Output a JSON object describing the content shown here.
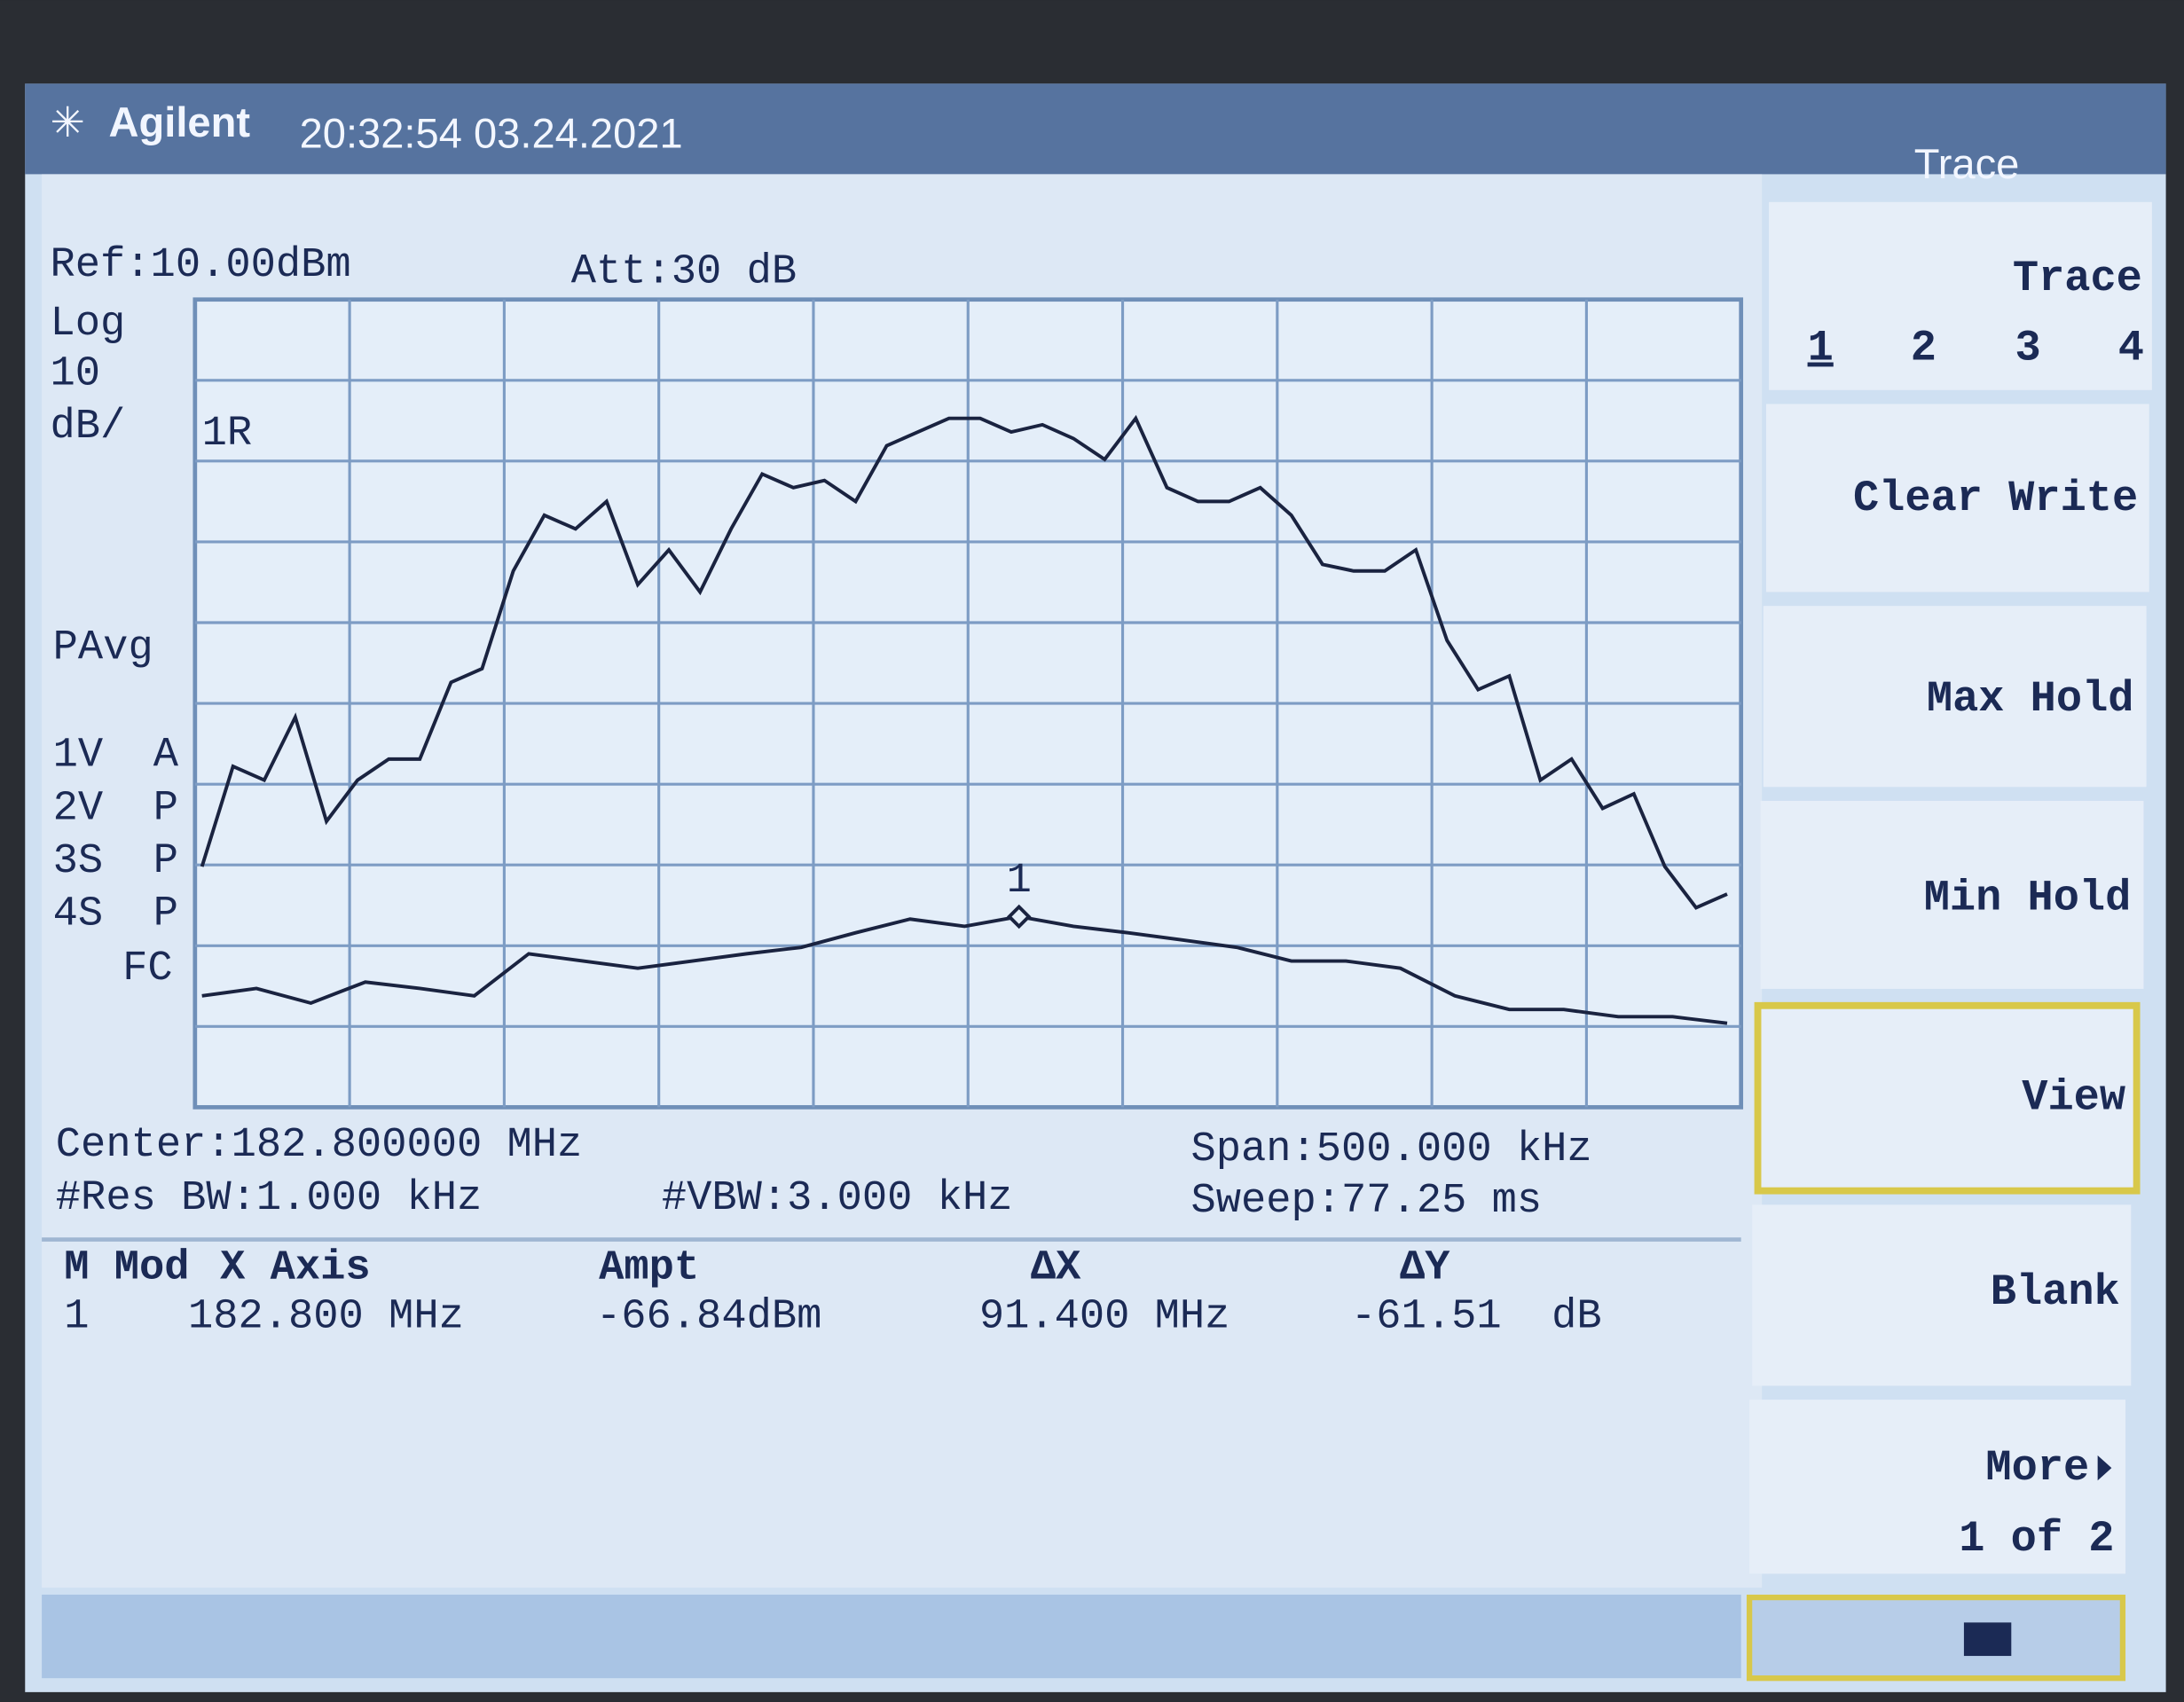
{
  "header": {
    "brand": "Agilent",
    "datetime": "20:32:54 03.24.2021"
  },
  "settings": {
    "ref": "Ref:10.00dBm",
    "att": "Att:30 dB",
    "scale": [
      "Log",
      "10",
      "dB/"
    ],
    "ref_marker": "1R",
    "detector": "PAvg",
    "trace_states": [
      "1V  A",
      "2V  P",
      "3S  P",
      "4S  P"
    ],
    "fc": "FC"
  },
  "footer": {
    "center": "Center:182.800000 MHz",
    "span": "Span:500.000 kHz",
    "rbw": "#Res BW:1.000 kHz",
    "vbw": "#VBW:3.000 kHz",
    "sweep": "Sweep:77.25 ms"
  },
  "marker_table": {
    "headers": [
      "M Mod",
      "X Axis",
      "Ampt",
      "ΔX",
      "ΔY"
    ],
    "rows": [
      [
        "1",
        "182.800 MHz",
        "-66.84dBm",
        "91.400 MHz",
        "-61.51  dB"
      ]
    ]
  },
  "softkeys": {
    "title": "Trace",
    "trace_label": "Trace",
    "trace_numbers": [
      "1",
      "2",
      "3",
      "4"
    ],
    "keys": [
      "Clear Write",
      "Max Hold",
      "Min Hold",
      "View",
      "Blank",
      "More"
    ],
    "more_page": "1 of 2"
  },
  "chart_data": {
    "type": "line",
    "ylim": [
      -90,
      10
    ],
    "marker_label": "1",
    "marker_index": 15,
    "series": [
      {
        "color": "#1a2340",
        "values": [
          -60.2,
          -47.8,
          -49.5,
          -41.7,
          -54.6,
          -49.5,
          -46.9,
          -46.9,
          -37.4,
          -35.7,
          -23.6,
          -16.7,
          -18.4,
          -15,
          -25.3,
          -21,
          -26.2,
          -18.4,
          -11.6,
          -13.3,
          -12.4,
          -15,
          -8.1,
          -6.4,
          -4.7,
          -4.7,
          -6.4,
          -5.5,
          -7.2,
          -9.8,
          -4.7,
          -13.3,
          -15,
          -15,
          -13.3,
          -16.7,
          -22.8,
          -23.6,
          -23.6,
          -21,
          -32.2,
          -38.3,
          -36.6,
          -49.5,
          -46.9,
          -53,
          -51.2,
          -60.2,
          -65.3,
          -63.6
        ]
      },
      {
        "color": "#1a2340",
        "values": [
          -76.2,
          -75.3,
          -77.1,
          -74.5,
          -75.3,
          -76.2,
          -71,
          -71.9,
          -72.8,
          -71.9,
          -71,
          -70.2,
          -68.4,
          -66.7,
          -67.6,
          -66.4,
          -67.6,
          -68.4,
          -69.3,
          -70.2,
          -71.9,
          -71.9,
          -72.8,
          -76.2,
          -77.9,
          -77.9,
          -78.8,
          -78.8,
          -79.6
        ]
      }
    ]
  }
}
